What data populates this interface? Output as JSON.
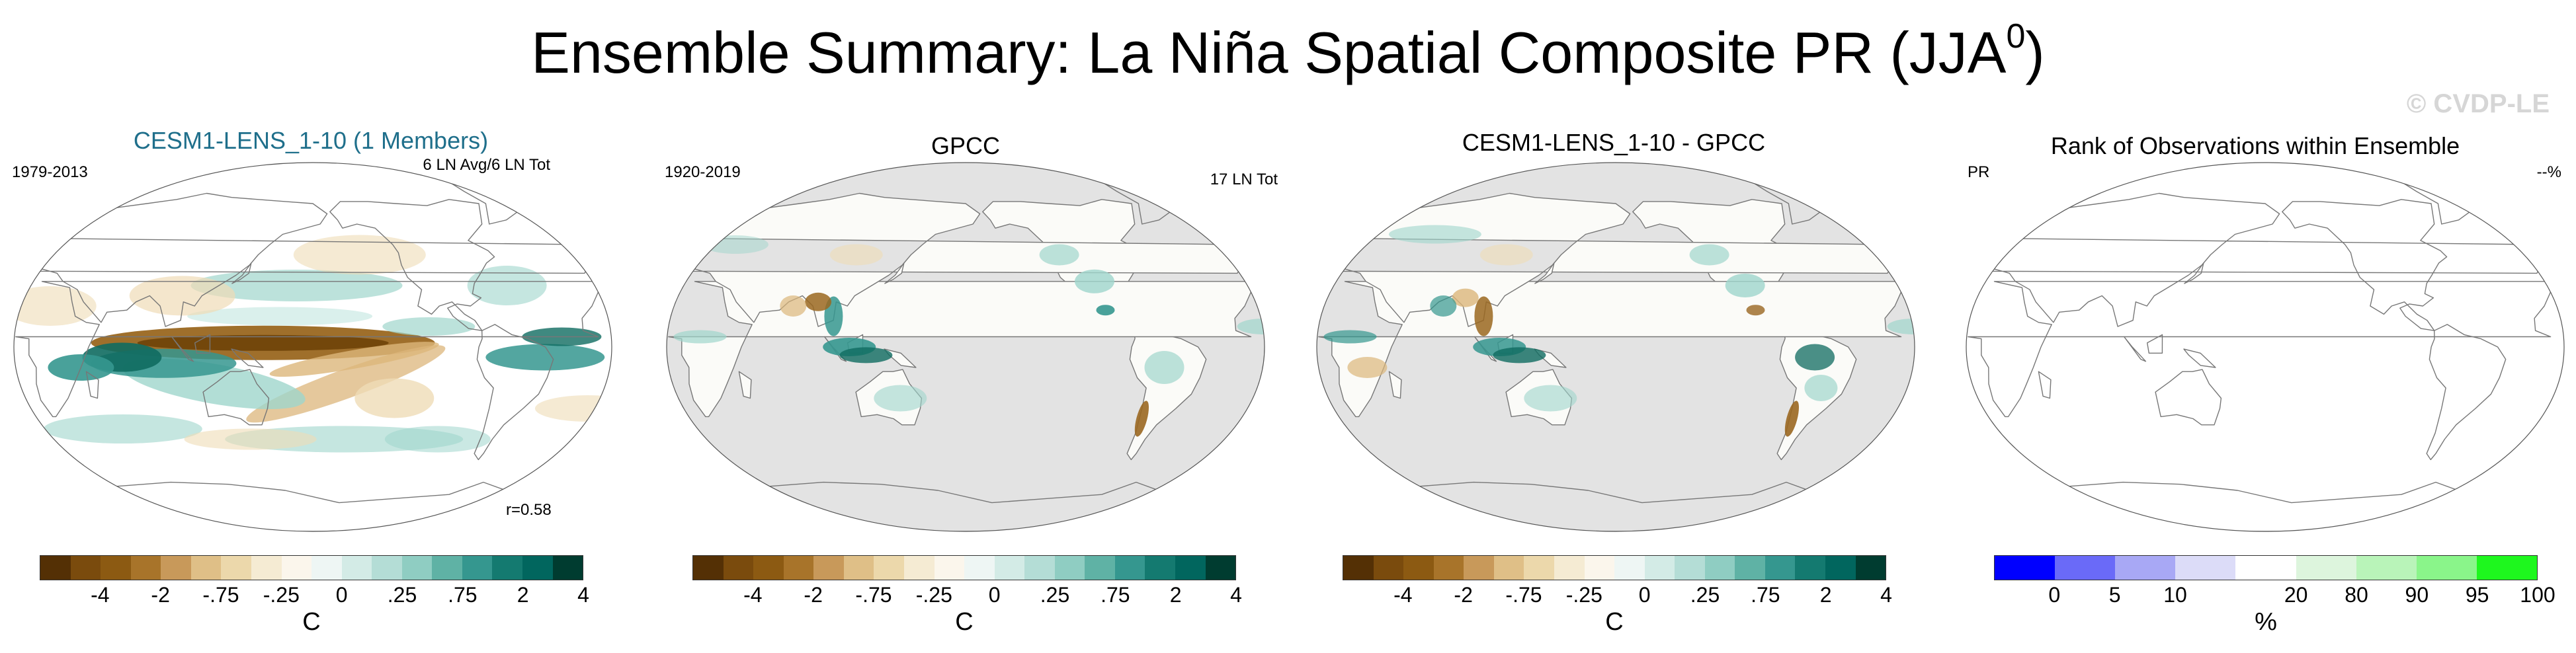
{
  "title_main": "Ensemble Summary: La Niña Spatial Composite PR (JJA",
  "title_sup": "0",
  "title_close": ")",
  "watermark": "© CVDP-LE",
  "colors": {
    "ocean_gray": "#e3e3e3",
    "coast_line": "#777777",
    "diverging_palette": [
      "#543005",
      "#7a4b0d",
      "#8c5a12",
      "#a8742a",
      "#c8995a",
      "#dfbf87",
      "#ecd8ab",
      "#f5ebd3",
      "#fbf6ec",
      "#eef6f4",
      "#d3ebe6",
      "#b4ddd6",
      "#8fcdc2",
      "#5fb2a5",
      "#35978f",
      "#147a70",
      "#01665e",
      "#003c30"
    ],
    "rank_palette": [
      "#0000ff",
      "#6a6af8",
      "#a8a8f5",
      "#dcdcf8",
      "#ffffff",
      "#ddf5dd",
      "#b9f4b9",
      "#8af58a",
      "#1ef71e"
    ]
  },
  "panels": [
    {
      "title": "CESM1-LENS_1-10 (1 Members)",
      "left_label": "1979-2013",
      "right_label": "6 LN Avg/6 LN Tot",
      "bottom_right_label": "r=0.58",
      "colorbar_ticks": [
        "-4",
        "-2",
        "-.75",
        "-.25",
        "0",
        ".25",
        ".75",
        "2",
        "4"
      ],
      "colorbar_unit": "C",
      "map_style": "model"
    },
    {
      "title": "GPCC",
      "left_label": "1920-2019",
      "right_label": "17 LN Tot",
      "bottom_right_label": "",
      "colorbar_ticks": [
        "-4",
        "-2",
        "-.75",
        "-.25",
        "0",
        ".25",
        ".75",
        "2",
        "4"
      ],
      "colorbar_unit": "C",
      "map_style": "obs"
    },
    {
      "title": "CESM1-LENS_1-10 - GPCC",
      "left_label": "",
      "right_label": "",
      "bottom_right_label": "",
      "colorbar_ticks": [
        "-4",
        "-2",
        "-.75",
        "-.25",
        "0",
        ".25",
        ".75",
        "2",
        "4"
      ],
      "colorbar_unit": "C",
      "map_style": "diff"
    },
    {
      "title": "Rank of Observations within Ensemble",
      "left_label": "PR",
      "right_label": "--%",
      "bottom_right_label": "",
      "colorbar_ticks": [
        "0",
        "5",
        "10",
        "20",
        "80",
        "90",
        "95",
        "100"
      ],
      "colorbar_unit": "%",
      "map_style": "rank"
    }
  ]
}
